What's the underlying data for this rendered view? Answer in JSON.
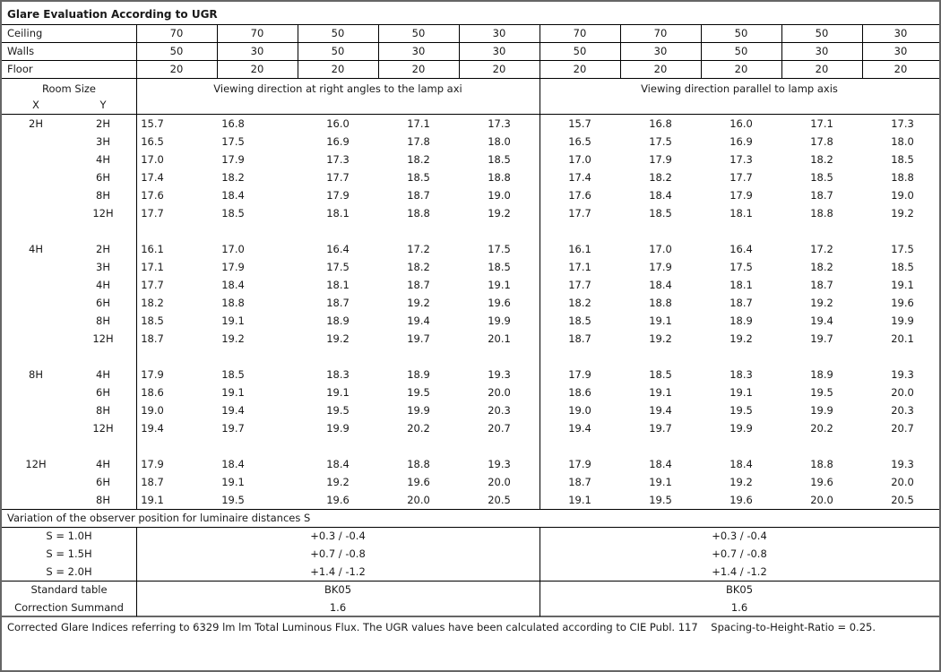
{
  "title": "Glare Evaluation According to UGR",
  "reflectances": [
    {
      "label": "Ceiling",
      "values": [
        "70",
        "70",
        "50",
        "50",
        "30",
        "70",
        "70",
        "50",
        "50",
        "30"
      ]
    },
    {
      "label": "Walls",
      "values": [
        "50",
        "30",
        "50",
        "30",
        "30",
        "50",
        "30",
        "50",
        "30",
        "30"
      ]
    },
    {
      "label": "Floor",
      "values": [
        "20",
        "20",
        "20",
        "20",
        "20",
        "20",
        "20",
        "20",
        "20",
        "20"
      ]
    }
  ],
  "room_size_label": "Room Size",
  "x_label": "X",
  "y_label": "Y",
  "direction_left": "Viewing direction at right angles to the lamp axi",
  "direction_right": "Viewing direction parallel to lamp axis",
  "groups": [
    {
      "x": "2H",
      "rows": [
        {
          "y": "2H",
          "left": [
            "15.7",
            "16.8",
            "16.0",
            "17.1",
            "17.3"
          ],
          "right": [
            "15.7",
            "16.8",
            "16.0",
            "17.1",
            "17.3"
          ]
        },
        {
          "y": "3H",
          "left": [
            "16.5",
            "17.5",
            "16.9",
            "17.8",
            "18.0"
          ],
          "right": [
            "16.5",
            "17.5",
            "16.9",
            "17.8",
            "18.0"
          ]
        },
        {
          "y": "4H",
          "left": [
            "17.0",
            "17.9",
            "17.3",
            "18.2",
            "18.5"
          ],
          "right": [
            "17.0",
            "17.9",
            "17.3",
            "18.2",
            "18.5"
          ]
        },
        {
          "y": "6H",
          "left": [
            "17.4",
            "18.2",
            "17.7",
            "18.5",
            "18.8"
          ],
          "right": [
            "17.4",
            "18.2",
            "17.7",
            "18.5",
            "18.8"
          ]
        },
        {
          "y": "8H",
          "left": [
            "17.6",
            "18.4",
            "17.9",
            "18.7",
            "19.0"
          ],
          "right": [
            "17.6",
            "18.4",
            "17.9",
            "18.7",
            "19.0"
          ]
        },
        {
          "y": "12H",
          "left": [
            "17.7",
            "18.5",
            "18.1",
            "18.8",
            "19.2"
          ],
          "right": [
            "17.7",
            "18.5",
            "18.1",
            "18.8",
            "19.2"
          ]
        }
      ]
    },
    {
      "x": "4H",
      "rows": [
        {
          "y": "2H",
          "left": [
            "16.1",
            "17.0",
            "16.4",
            "17.2",
            "17.5"
          ],
          "right": [
            "16.1",
            "17.0",
            "16.4",
            "17.2",
            "17.5"
          ]
        },
        {
          "y": "3H",
          "left": [
            "17.1",
            "17.9",
            "17.5",
            "18.2",
            "18.5"
          ],
          "right": [
            "17.1",
            "17.9",
            "17.5",
            "18.2",
            "18.5"
          ]
        },
        {
          "y": "4H",
          "left": [
            "17.7",
            "18.4",
            "18.1",
            "18.7",
            "19.1"
          ],
          "right": [
            "17.7",
            "18.4",
            "18.1",
            "18.7",
            "19.1"
          ]
        },
        {
          "y": "6H",
          "left": [
            "18.2",
            "18.8",
            "18.7",
            "19.2",
            "19.6"
          ],
          "right": [
            "18.2",
            "18.8",
            "18.7",
            "19.2",
            "19.6"
          ]
        },
        {
          "y": "8H",
          "left": [
            "18.5",
            "19.1",
            "18.9",
            "19.4",
            "19.9"
          ],
          "right": [
            "18.5",
            "19.1",
            "18.9",
            "19.4",
            "19.9"
          ]
        },
        {
          "y": "12H",
          "left": [
            "18.7",
            "19.2",
            "19.2",
            "19.7",
            "20.1"
          ],
          "right": [
            "18.7",
            "19.2",
            "19.2",
            "19.7",
            "20.1"
          ]
        }
      ]
    },
    {
      "x": "8H",
      "rows": [
        {
          "y": "4H",
          "left": [
            "17.9",
            "18.5",
            "18.3",
            "18.9",
            "19.3"
          ],
          "right": [
            "17.9",
            "18.5",
            "18.3",
            "18.9",
            "19.3"
          ]
        },
        {
          "y": "6H",
          "left": [
            "18.6",
            "19.1",
            "19.1",
            "19.5",
            "20.0"
          ],
          "right": [
            "18.6",
            "19.1",
            "19.1",
            "19.5",
            "20.0"
          ]
        },
        {
          "y": "8H",
          "left": [
            "19.0",
            "19.4",
            "19.5",
            "19.9",
            "20.3"
          ],
          "right": [
            "19.0",
            "19.4",
            "19.5",
            "19.9",
            "20.3"
          ]
        },
        {
          "y": "12H",
          "left": [
            "19.4",
            "19.7",
            "19.9",
            "20.2",
            "20.7"
          ],
          "right": [
            "19.4",
            "19.7",
            "19.9",
            "20.2",
            "20.7"
          ]
        }
      ]
    },
    {
      "x": "12H",
      "rows": [
        {
          "y": "4H",
          "left": [
            "17.9",
            "18.4",
            "18.4",
            "18.8",
            "19.3"
          ],
          "right": [
            "17.9",
            "18.4",
            "18.4",
            "18.8",
            "19.3"
          ]
        },
        {
          "y": "6H",
          "left": [
            "18.7",
            "19.1",
            "19.2",
            "19.6",
            "20.0"
          ],
          "right": [
            "18.7",
            "19.1",
            "19.2",
            "19.6",
            "20.0"
          ]
        },
        {
          "y": "8H",
          "left": [
            "19.1",
            "19.5",
            "19.6",
            "20.0",
            "20.5"
          ],
          "right": [
            "19.1",
            "19.5",
            "19.6",
            "20.0",
            "20.5"
          ]
        }
      ]
    }
  ],
  "variation_title": "Variation of the observer position for luminaire distances S",
  "variations": [
    {
      "label": "S = 1.0H",
      "left": "+0.3 / -0.4",
      "right": "+0.3 / -0.4"
    },
    {
      "label": "S = 1.5H",
      "left": "+0.7 / -0.8",
      "right": "+0.7 / -0.8"
    },
    {
      "label": "S = 2.0H",
      "left": "+1.4 / -1.2",
      "right": "+1.4 / -1.2"
    }
  ],
  "standard_table": {
    "label": "Standard table",
    "left": "BK05",
    "right": "BK05"
  },
  "correction_summand": {
    "label": "Correction Summand",
    "left": "1.6",
    "right": "1.6"
  },
  "footer": "Corrected Glare Indices referring to 6329 lm lm Total Luminous Flux. The UGR values have been calculated according to CIE Publ. 117    Spacing-to-Height-Ratio = 0.25."
}
